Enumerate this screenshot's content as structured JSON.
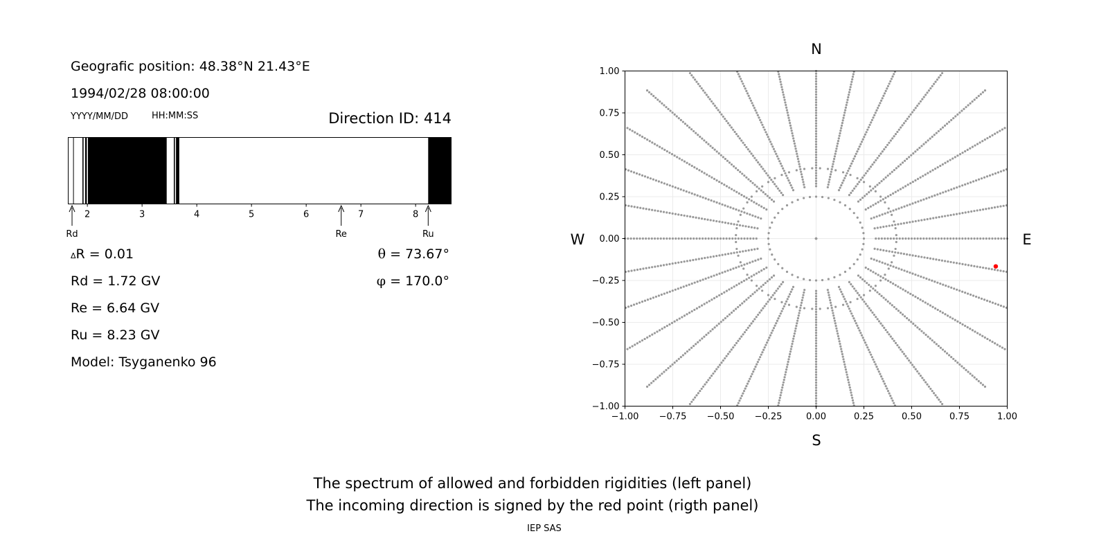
{
  "left_panel": {
    "geo_position": "Geografic position: 48.38°N 21.43°E",
    "datetime": "1994/02/28 08:00:00",
    "date_format_label": "YYYY/MM/DD",
    "time_format_label": "HH:MM:SS",
    "direction_id": "Direction ID: 414",
    "delta_r_symbol": "Δ",
    "delta_r": "R = 0.01",
    "rd": "Rd = 1.72 GV",
    "re": "Re = 6.64 GV",
    "ru": "Ru = 8.23 GV",
    "model": "Model: Tsyganenko 96",
    "theta_symbol": "θ",
    "theta": " = 73.67°",
    "phi_symbol": "φ",
    "phi": " = 170.0°"
  },
  "captions": {
    "line1": "The spectrum of allowed and forbidden rigidities (left panel)",
    "line2": "The incoming direction is signed by the red point (rigth panel)",
    "credit": "IEP SAS"
  },
  "chart_data": [
    {
      "type": "bar",
      "xlim": [
        1.65,
        8.65
      ],
      "xticks": [
        2,
        3,
        4,
        5,
        6,
        7,
        8
      ],
      "forbidden_ranges": [
        [
          1.74,
          1.75
        ],
        [
          1.91,
          1.93
        ],
        [
          1.96,
          1.99
        ],
        [
          2.01,
          3.45
        ],
        [
          3.58,
          3.6
        ],
        [
          3.62,
          3.68
        ],
        [
          8.23,
          8.65
        ]
      ],
      "fill_color": "#000000",
      "markers": [
        {
          "label": "Rd",
          "value": 1.72
        },
        {
          "label": "Re",
          "value": 6.64
        },
        {
          "label": "Ru",
          "value": 8.23
        }
      ]
    },
    {
      "type": "scatter",
      "xlim": [
        -1,
        1
      ],
      "ylim": [
        -1,
        1
      ],
      "xticks": [
        "−1.00",
        "−0.75",
        "−0.50",
        "−0.25",
        "0.00",
        "0.25",
        "0.50",
        "0.75",
        "1.00"
      ],
      "yticks": [
        "−1.00",
        "−0.75",
        "−0.50",
        "−0.25",
        "0.00",
        "0.25",
        "0.50",
        "0.75",
        "1.00"
      ],
      "grid": true,
      "directions": {
        "N": "N",
        "S": "S",
        "E": "E",
        "W": "W"
      },
      "grid_points": {
        "r_min": 0.0,
        "r_max": 1.0,
        "r_step": 0.0125,
        "radial_count": 32,
        "inner_circle_radius": 0.25,
        "ring_radii": [
          0.42
        ],
        "color": "#999999"
      },
      "highlight_point": {
        "x": 0.94,
        "y": -0.166,
        "color": "#ff0000"
      }
    }
  ]
}
